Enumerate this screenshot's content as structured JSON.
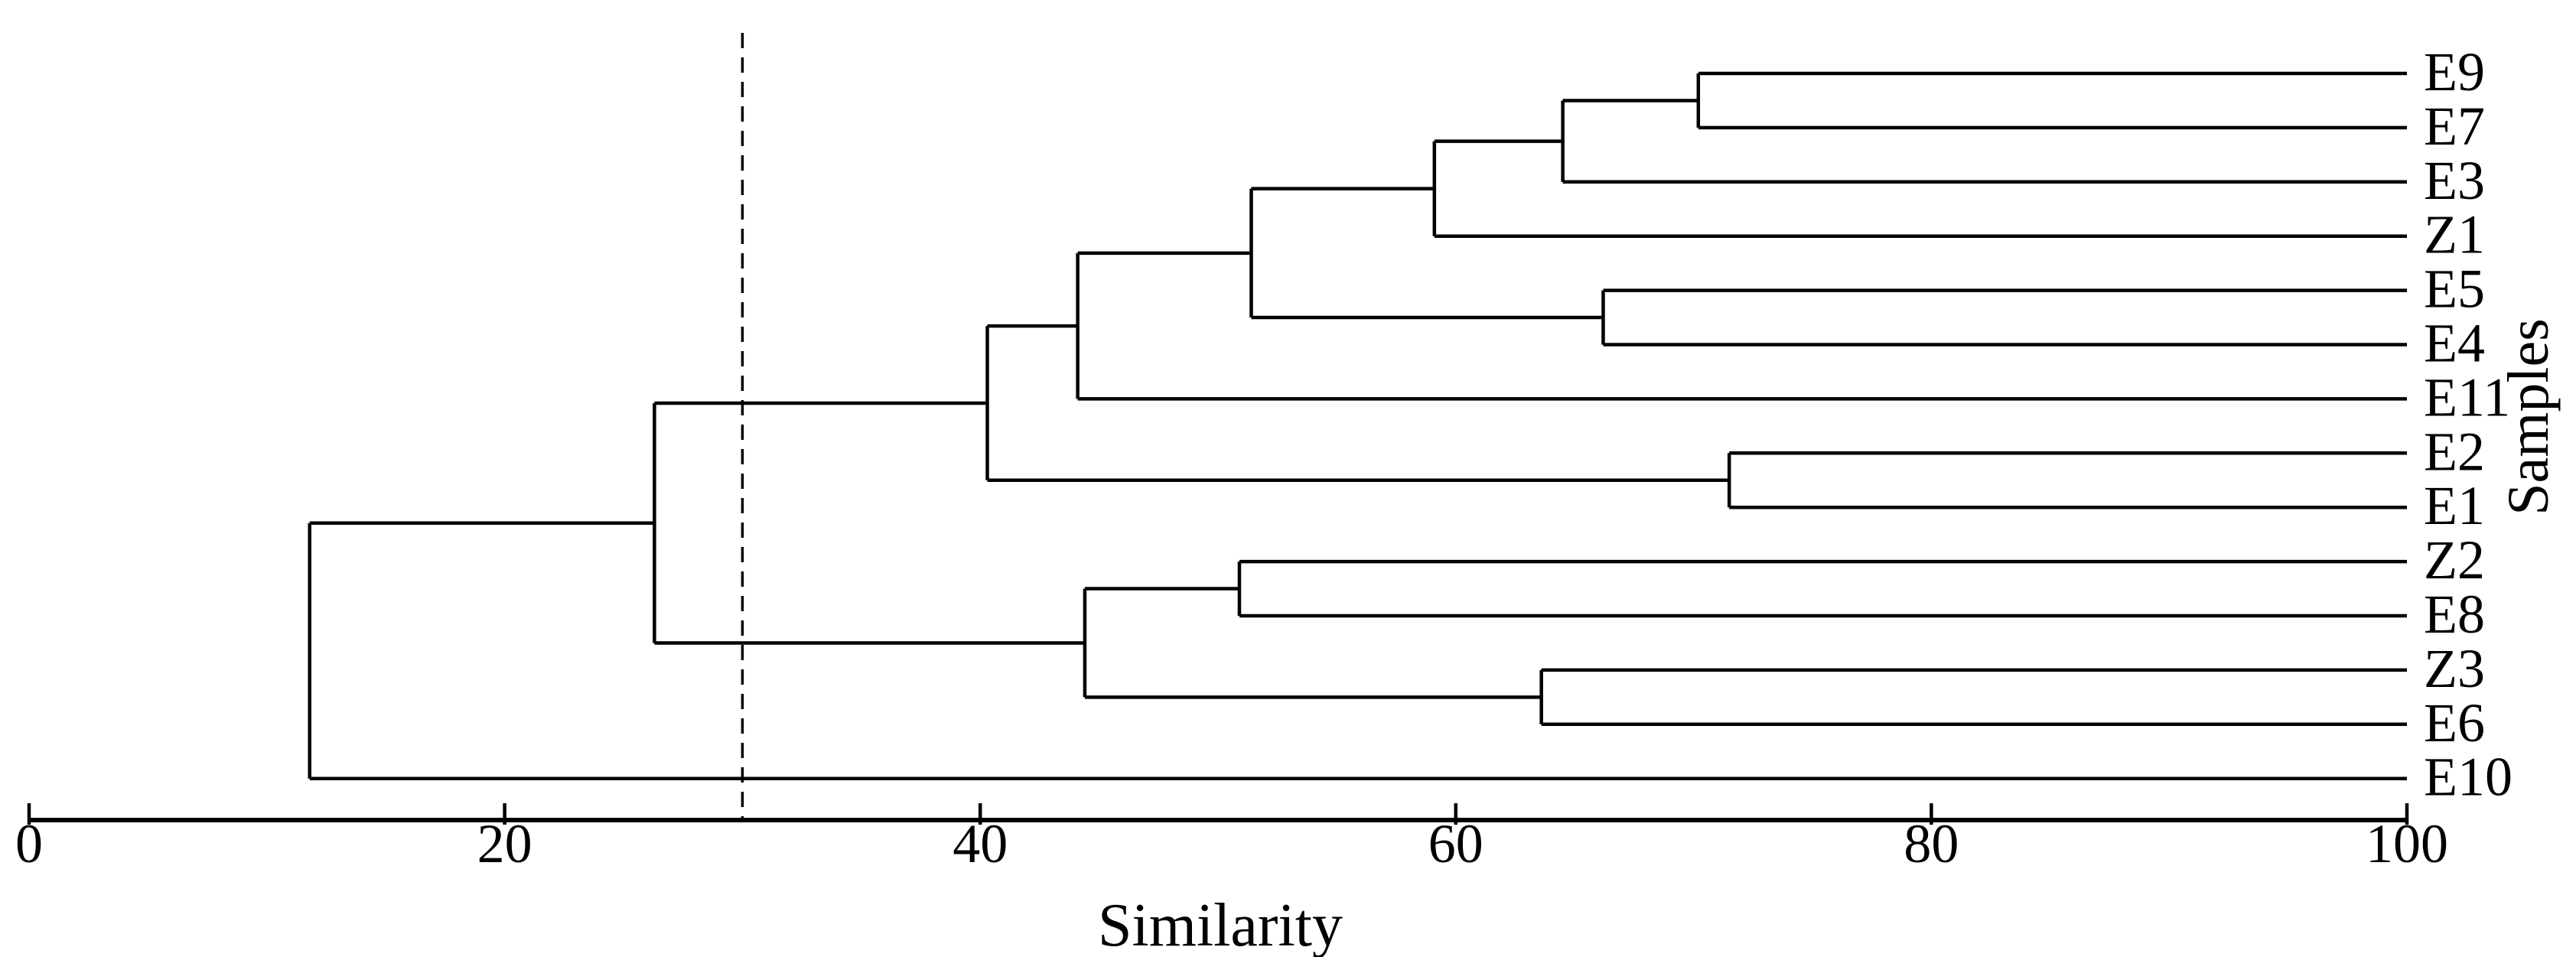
{
  "figure": {
    "background": "#ffffff",
    "line_color": "#000000"
  },
  "chart_data": {
    "type": "dendrogram",
    "title": "",
    "xlabel": "Similarity",
    "ylabel": "Samples",
    "orientation": "horizontal; root at left, leaf labels on right, similarity increases to the right",
    "xlim": [
      0,
      100
    ],
    "x_ticks": [
      0,
      20,
      40,
      60,
      80,
      100
    ],
    "grid": false,
    "leaves_top_to_bottom": [
      "E9",
      "E7",
      "E3",
      "Z1",
      "E5",
      "E4",
      "E11",
      "E2",
      "E1",
      "Z2",
      "E8",
      "Z3",
      "E6",
      "E10"
    ],
    "cut_line": {
      "similarity": 30,
      "style": "dashed-vertical"
    },
    "tree": {
      "similarity": 11.8,
      "children": [
        {
          "similarity": 26.3,
          "children": [
            {
              "similarity": 40.3,
              "children": [
                {
                  "similarity": 44.1,
                  "children": [
                    {
                      "similarity": 51.4,
                      "children": [
                        {
                          "similarity": 59.1,
                          "children": [
                            {
                              "similarity": 64.5,
                              "children": [
                                {
                                  "similarity": 70.2,
                                  "children": [
                                    {
                                      "leaf": "E9"
                                    },
                                    {
                                      "leaf": "E7"
                                    }
                                  ]
                                },
                                {
                                  "leaf": "E3"
                                }
                              ]
                            },
                            {
                              "leaf": "Z1"
                            }
                          ]
                        },
                        {
                          "similarity": 66.2,
                          "children": [
                            {
                              "leaf": "E5"
                            },
                            {
                              "leaf": "E4"
                            }
                          ]
                        }
                      ]
                    },
                    {
                      "leaf": "E11"
                    }
                  ]
                },
                {
                  "similarity": 71.5,
                  "children": [
                    {
                      "leaf": "E2"
                    },
                    {
                      "leaf": "E1"
                    }
                  ]
                }
              ]
            },
            {
              "similarity": 44.4,
              "children": [
                {
                  "similarity": 50.9,
                  "children": [
                    {
                      "leaf": "Z2"
                    },
                    {
                      "leaf": "E8"
                    }
                  ]
                },
                {
                  "similarity": 63.6,
                  "children": [
                    {
                      "leaf": "Z3"
                    },
                    {
                      "leaf": "E6"
                    }
                  ]
                }
              ]
            }
          ]
        },
        {
          "leaf": "E10"
        }
      ]
    }
  }
}
